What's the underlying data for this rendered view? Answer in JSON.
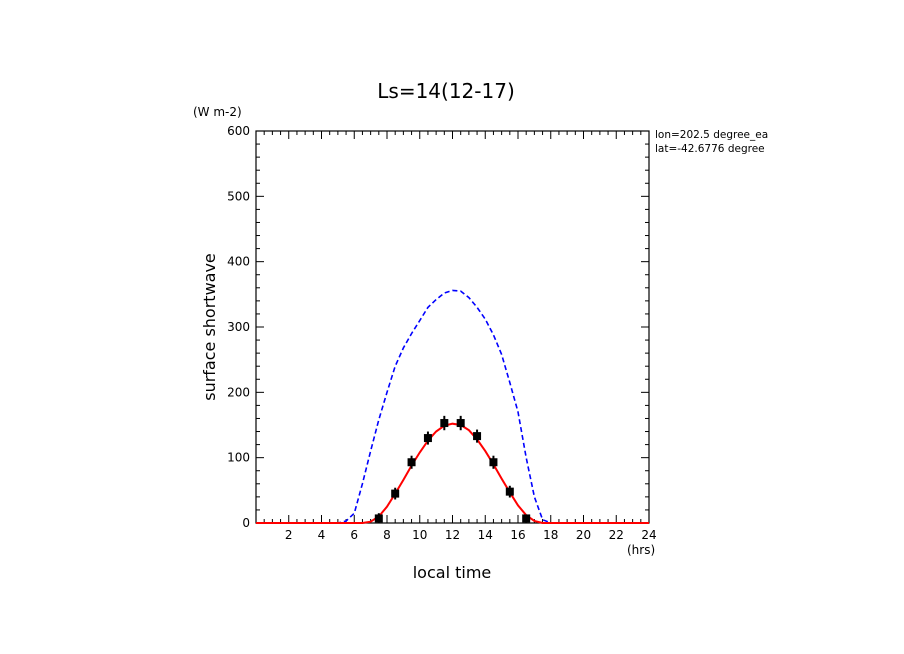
{
  "chart_data": {
    "type": "line",
    "title": "Ls=14(12-17)",
    "xlabel": "local time",
    "ylabel": "surface shortwave",
    "x_unit": "(hrs)",
    "y_unit": "(W m-2)",
    "xlim": [
      0,
      24
    ],
    "ylim": [
      0,
      600
    ],
    "x_ticks": [
      2,
      4,
      6,
      8,
      10,
      12,
      14,
      16,
      18,
      20,
      22,
      24
    ],
    "y_ticks": [
      0,
      100,
      200,
      300,
      400,
      500,
      600
    ],
    "x_tick_labels": [
      "2",
      "4",
      "6",
      "8",
      "10",
      "12",
      "14",
      "16",
      "18",
      "20",
      "22",
      "24"
    ],
    "y_tick_labels": [
      "0",
      "100",
      "200",
      "300",
      "400",
      "500",
      "600"
    ],
    "annotations": [
      "lon=202.5 degree_ea",
      "lat=-42.6776 degree"
    ],
    "grid": false,
    "series": [
      {
        "style": "dashed",
        "color": "#0000ff",
        "x": [
          0,
          1,
          2,
          3,
          4,
          5,
          5.5,
          6,
          6.5,
          7,
          7.5,
          8,
          8.5,
          9,
          9.5,
          10,
          10.5,
          11,
          11.5,
          12,
          12.5,
          13,
          13.5,
          14,
          14.5,
          15,
          15.5,
          16,
          16.5,
          17,
          17.5,
          18,
          19,
          20,
          21,
          22,
          23,
          24
        ],
        "values": [
          0,
          0,
          0,
          0,
          0,
          0,
          3,
          15,
          60,
          110,
          158,
          200,
          240,
          268,
          290,
          310,
          330,
          342,
          352,
          356,
          355,
          345,
          330,
          312,
          288,
          258,
          215,
          170,
          100,
          40,
          5,
          0,
          0,
          0,
          0,
          0,
          0,
          0
        ]
      },
      {
        "style": "solid",
        "color": "#ff0000",
        "x": [
          0,
          1,
          2,
          3,
          4,
          5,
          6,
          6.5,
          7,
          7.5,
          8,
          8.5,
          9,
          9.5,
          10,
          10.5,
          11,
          11.5,
          12,
          12.5,
          13,
          13.5,
          14,
          14.5,
          15,
          15.5,
          16,
          16.5,
          17,
          17.5,
          18,
          19,
          20,
          21,
          22,
          23,
          24
        ],
        "values": [
          0,
          0,
          0,
          0,
          0,
          0,
          0,
          0,
          2,
          10,
          25,
          45,
          66,
          88,
          108,
          126,
          140,
          149,
          152,
          150,
          142,
          128,
          110,
          90,
          68,
          47,
          27,
          12,
          3,
          0,
          0,
          0,
          0,
          0,
          0,
          0,
          0
        ]
      },
      {
        "style": "markers",
        "color": "#000000",
        "marker": "square-with-errorbar",
        "x": [
          7.5,
          8.5,
          9.5,
          10.5,
          11.5,
          12.5,
          13.5,
          14.5,
          15.5,
          16.5
        ],
        "values": [
          7,
          45,
          93,
          130,
          153,
          153,
          133,
          93,
          48,
          7
        ],
        "error": [
          8,
          9,
          10,
          10,
          11,
          11,
          10,
          10,
          9,
          6
        ]
      }
    ]
  }
}
